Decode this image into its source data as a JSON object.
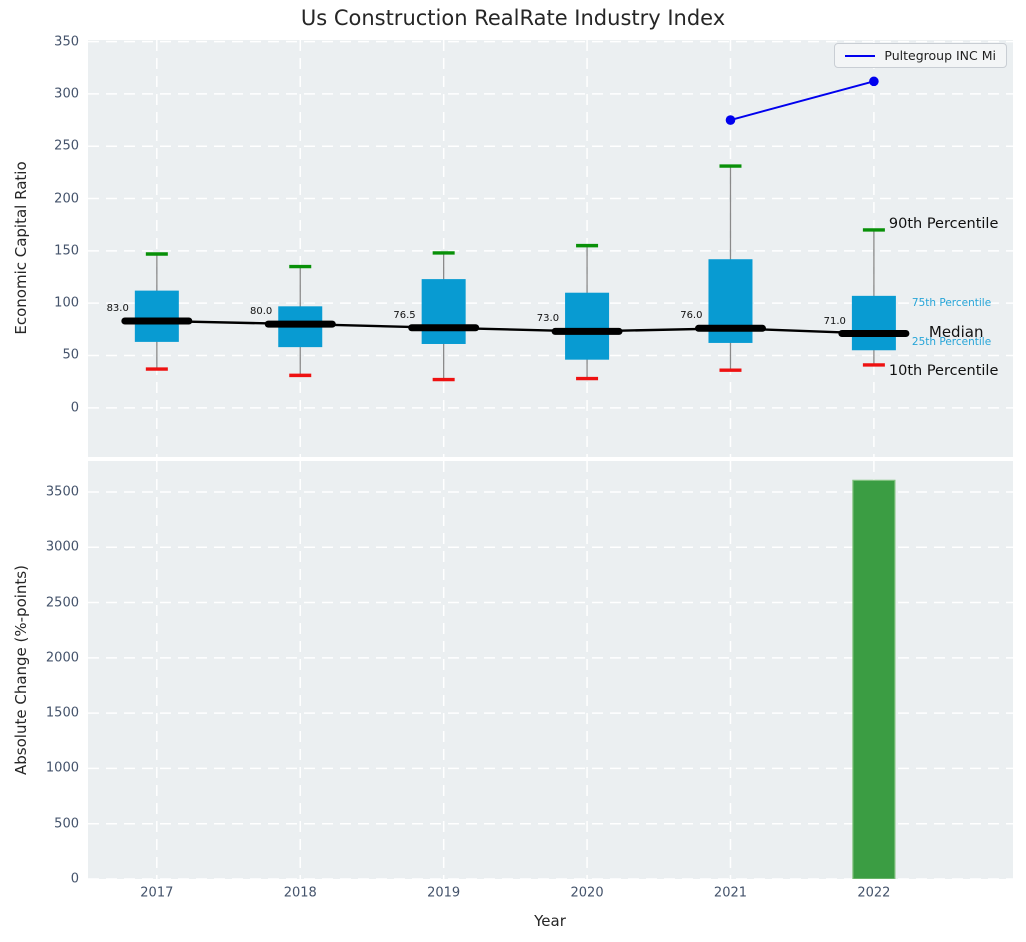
{
  "title": "Us Construction RealRate Industry Index",
  "colors": {
    "axes_bg": "#ebeff1",
    "grid": "#ffffff",
    "tick_label": "#44536b",
    "box_fill": "#089bd2",
    "whisker": "#8a8a8a",
    "p90_cap_green": "#089008",
    "p10_cap_red": "#ee1111",
    "median_black": "#000000",
    "company_line_blue": "#0000ee",
    "bar_fill_green": "#3b9d43",
    "bar_edge": "#82c27f",
    "percentile_label_blue": "#27a5d8"
  },
  "chart_data": [
    {
      "type": "boxplot",
      "subtype": "percentile-boxes-with-median-line-and-company-series",
      "title": "Us Construction RealRate Industry Index",
      "ylabel": "Economic Capital Ratio",
      "yticks": [
        0,
        50,
        100,
        150,
        200,
        250,
        300,
        350
      ],
      "ylim": [
        -47,
        351.5
      ],
      "xlim": [
        2016.5,
        2023.0
      ],
      "grid": "white dashed on gray background",
      "legend_position": "upper right",
      "categories": [
        2017,
        2018,
        2019,
        2020,
        2021,
        2022
      ],
      "boxes": [
        {
          "year": 2017,
          "p10": 37,
          "p25": 63,
          "median": 83.0,
          "p75": 112,
          "p90": 147,
          "median_label": "83.0"
        },
        {
          "year": 2018,
          "p10": 31,
          "p25": 58,
          "median": 80.0,
          "p75": 97,
          "p90": 135,
          "median_label": "80.0"
        },
        {
          "year": 2019,
          "p10": 27,
          "p25": 61,
          "median": 76.5,
          "p75": 123,
          "p90": 148,
          "median_label": "76.5"
        },
        {
          "year": 2020,
          "p10": 28,
          "p25": 46,
          "median": 73.0,
          "p75": 110,
          "p90": 155,
          "median_label": "73.0"
        },
        {
          "year": 2021,
          "p10": 36,
          "p25": 62,
          "median": 76.0,
          "p75": 142,
          "p90": 231,
          "median_label": "76.0"
        },
        {
          "year": 2022,
          "p10": 41,
          "p25": 55,
          "median": 71.0,
          "p75": 107,
          "p90": 170,
          "median_label": "71.0"
        }
      ],
      "series": [
        {
          "name": "Pultegroup INC Mi",
          "points": [
            {
              "year": 2021,
              "value": 275
            },
            {
              "year": 2022,
              "value": 312
            }
          ]
        }
      ],
      "annotations": [
        {
          "label": "90th Percentile",
          "anchor": "p90",
          "style": "large-dark"
        },
        {
          "label": "75th Percentile",
          "anchor": "p75",
          "style": "small-blue"
        },
        {
          "label": "Median",
          "anchor": "median",
          "style": "medium-dark"
        },
        {
          "label": "25th Percentile",
          "anchor": "p25",
          "style": "small-blue"
        },
        {
          "label": "10th Percentile",
          "anchor": "p10",
          "style": "large-dark"
        }
      ]
    },
    {
      "type": "bar",
      "ylabel": "Absolute Change (%-points)",
      "xlabel": "Year",
      "yticks": [
        0,
        500,
        1000,
        1500,
        2000,
        2500,
        3000,
        3500
      ],
      "ylim": [
        0,
        3780
      ],
      "categories": [
        2017,
        2018,
        2019,
        2020,
        2021,
        2022
      ],
      "values": [
        0,
        0,
        0,
        0,
        0,
        3605
      ]
    }
  ]
}
